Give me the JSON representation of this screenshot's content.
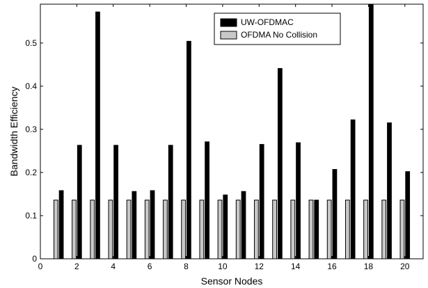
{
  "chart_data": {
    "type": "bar",
    "xlabel": "Sensor Nodes",
    "ylabel": "Bandwidth Efficiency",
    "xlim": [
      0,
      21
    ],
    "ylim": [
      0,
      0.59
    ],
    "x_ticks": [
      0,
      2,
      4,
      6,
      8,
      10,
      12,
      14,
      16,
      18,
      20
    ],
    "y_ticks": [
      0,
      0.1,
      0.2,
      0.3,
      0.4,
      0.5
    ],
    "grid": false,
    "legend_position": "top-right",
    "categories": [
      1,
      2,
      3,
      4,
      5,
      6,
      7,
      8,
      9,
      10,
      11,
      12,
      13,
      14,
      15,
      16,
      17,
      18,
      19,
      20
    ],
    "series": [
      {
        "name": "UW-OFDMAC",
        "color": "#000000",
        "values": [
          0.158,
          0.263,
          0.572,
          0.263,
          0.156,
          0.158,
          0.263,
          0.504,
          0.271,
          0.148,
          0.156,
          0.265,
          0.441,
          0.269,
          0.136,
          0.207,
          0.322,
          0.59,
          0.315,
          0.202
        ]
      },
      {
        "name": "OFDMA No Collision",
        "color": "#c8c8c8",
        "values": [
          0.136,
          0.136,
          0.136,
          0.136,
          0.136,
          0.136,
          0.136,
          0.136,
          0.136,
          0.136,
          0.136,
          0.136,
          0.136,
          0.136,
          0.136,
          0.136,
          0.136,
          0.136,
          0.136,
          0.136
        ]
      }
    ]
  }
}
